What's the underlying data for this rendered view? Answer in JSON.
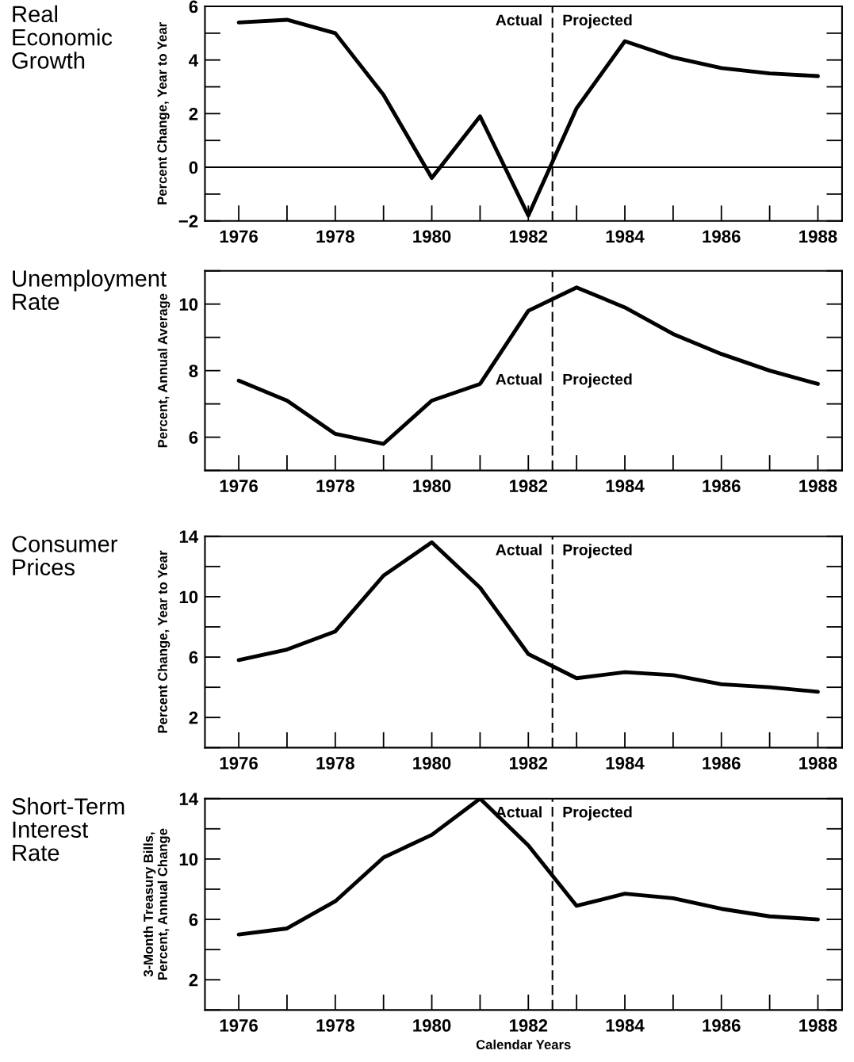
{
  "chart_data": [
    {
      "type": "line",
      "title": "Real\nEconomic\nGrowth",
      "ylabel": "Percent Change, Year to Year",
      "x": [
        1976,
        1977,
        1978,
        1979,
        1980,
        1981,
        1982,
        1983,
        1984,
        1985,
        1986,
        1987,
        1988
      ],
      "series": [
        {
          "color": "#000000",
          "values": [
            5.4,
            5.5,
            5.0,
            2.7,
            -0.4,
            1.9,
            -1.8,
            2.2,
            4.7,
            4.1,
            3.7,
            3.5,
            3.4
          ]
        }
      ],
      "xlim": [
        1975.3,
        1988.5
      ],
      "xticks": [
        1976,
        1978,
        1980,
        1982,
        1984,
        1986,
        1988
      ],
      "ylim": [
        -2,
        6
      ],
      "yticks": [
        {
          "value": -2,
          "label": "−2"
        },
        0,
        2,
        4,
        6
      ],
      "ref_lines": [
        {
          "axis": "x",
          "value": 1982.5,
          "line_style": "dashed"
        },
        {
          "axis": "y",
          "value": 0,
          "line_style": "solid"
        }
      ],
      "annotations": [
        "Actual",
        "Projected"
      ],
      "grid": false,
      "legend": false,
      "marker": "none",
      "line_style": "solid"
    },
    {
      "type": "line",
      "title": "Unemployment\nRate",
      "ylabel": "Percent, Annual Average",
      "x": [
        1976,
        1977,
        1978,
        1979,
        1980,
        1981,
        1982,
        1983,
        1984,
        1985,
        1986,
        1987,
        1988
      ],
      "series": [
        {
          "color": "#000000",
          "values": [
            7.7,
            7.1,
            6.1,
            5.8,
            7.1,
            7.6,
            9.8,
            10.5,
            9.9,
            9.1,
            8.5,
            8.0,
            7.6
          ]
        }
      ],
      "xlim": [
        1975.3,
        1988.5
      ],
      "xticks": [
        1976,
        1978,
        1980,
        1982,
        1984,
        1986,
        1988
      ],
      "ylim": [
        5,
        11
      ],
      "yticks": [
        6,
        8,
        10
      ],
      "ref_lines": [
        {
          "axis": "x",
          "value": 1982.5,
          "line_style": "dashed"
        }
      ],
      "annotations": [
        "Actual",
        "Projected"
      ],
      "grid": false,
      "legend": false,
      "marker": "none",
      "line_style": "solid"
    },
    {
      "type": "line",
      "title": "Consumer\nPrices",
      "ylabel": "Percent Change, Year to Year",
      "x": [
        1976,
        1977,
        1978,
        1979,
        1980,
        1981,
        1982,
        1983,
        1984,
        1985,
        1986,
        1987,
        1988
      ],
      "series": [
        {
          "color": "#000000",
          "values": [
            5.8,
            6.5,
            7.7,
            11.4,
            13.6,
            10.6,
            6.2,
            4.6,
            5.0,
            4.8,
            4.2,
            4.0,
            3.7
          ]
        }
      ],
      "xlim": [
        1975.3,
        1988.5
      ],
      "xticks": [
        1976,
        1978,
        1980,
        1982,
        1984,
        1986,
        1988
      ],
      "ylim": [
        0,
        14
      ],
      "yticks": [
        2,
        6,
        10,
        14
      ],
      "ref_lines": [
        {
          "axis": "x",
          "value": 1982.5,
          "line_style": "dashed"
        }
      ],
      "annotations": [
        "Actual",
        "Projected"
      ],
      "grid": false,
      "legend": false,
      "marker": "none",
      "line_style": "solid"
    },
    {
      "type": "line",
      "title": "Short-Term\nInterest\nRate",
      "ylabel": "3-Month Treasury Bills,\nPercent, Annual Change",
      "xlabel": "Calendar Years",
      "x": [
        1976,
        1977,
        1978,
        1979,
        1980,
        1981,
        1982,
        1983,
        1984,
        1985,
        1986,
        1987,
        1988
      ],
      "series": [
        {
          "color": "#000000",
          "values": [
            5.0,
            5.4,
            7.2,
            10.1,
            11.6,
            14.0,
            10.9,
            6.9,
            7.7,
            7.4,
            6.7,
            6.2,
            6.0
          ]
        }
      ],
      "xlim": [
        1975.3,
        1988.5
      ],
      "xticks": [
        1976,
        1978,
        1980,
        1982,
        1984,
        1986,
        1988
      ],
      "ylim": [
        0,
        14
      ],
      "yticks": [
        2,
        6,
        10,
        14
      ],
      "ref_lines": [
        {
          "axis": "x",
          "value": 1982.5,
          "line_style": "dashed"
        }
      ],
      "annotations": [
        "Actual",
        "Projected"
      ],
      "grid": false,
      "legend": false,
      "marker": "none",
      "line_style": "solid"
    }
  ]
}
